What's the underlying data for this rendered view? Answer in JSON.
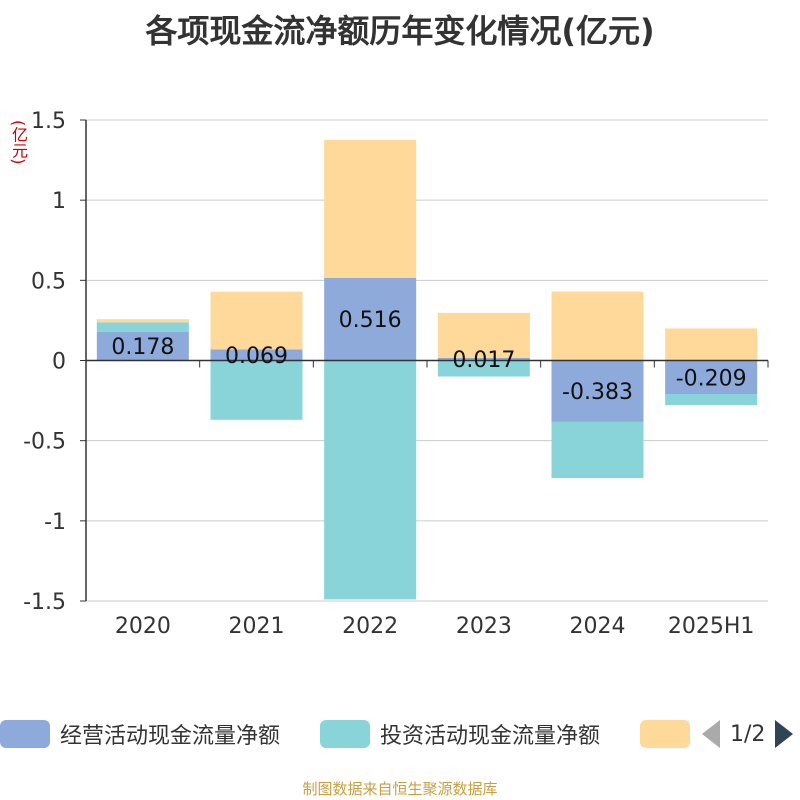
{
  "chart_data": {
    "type": "bar",
    "stacked": true,
    "title": "各项现金流净额历年变化情况(亿元)",
    "ylabel": "(亿元)",
    "categories": [
      "2020",
      "2021",
      "2022",
      "2023",
      "2024",
      "2025H1"
    ],
    "ylim": [
      -1.5,
      1.5
    ],
    "yticks": [
      "1.5",
      "1",
      "0.5",
      "0",
      "-0.5",
      "-1",
      "-1.5"
    ],
    "grid": true,
    "legend_position": "bottom",
    "series": [
      {
        "name": "经营活动现金流量净额",
        "color": "#8eaadb",
        "values": [
          0.178,
          0.069,
          0.516,
          0.017,
          -0.383,
          -0.209
        ],
        "labels": [
          "0.178",
          "0.069",
          "0.516",
          "0.017",
          "-0.383",
          "-0.209"
        ]
      },
      {
        "name": "投资活动现金流量净额",
        "color": "#88d4d8",
        "values": [
          0.06,
          -0.37,
          -1.49,
          -0.1,
          -0.35,
          -0.07
        ]
      },
      {
        "name": "",
        "color": "#ffd999",
        "values": [
          0.02,
          0.36,
          0.86,
          0.28,
          0.43,
          0.2
        ]
      }
    ]
  },
  "legend": {
    "items": [
      {
        "label": "经营活动现金流量净额",
        "color": "#8eaadb"
      },
      {
        "label": "投资活动现金流量净额",
        "color": "#88d4d8"
      },
      {
        "label": "",
        "color": "#ffd999"
      }
    ],
    "page_text": "1/2"
  },
  "source": "制图数据来自恒生聚源数据库"
}
